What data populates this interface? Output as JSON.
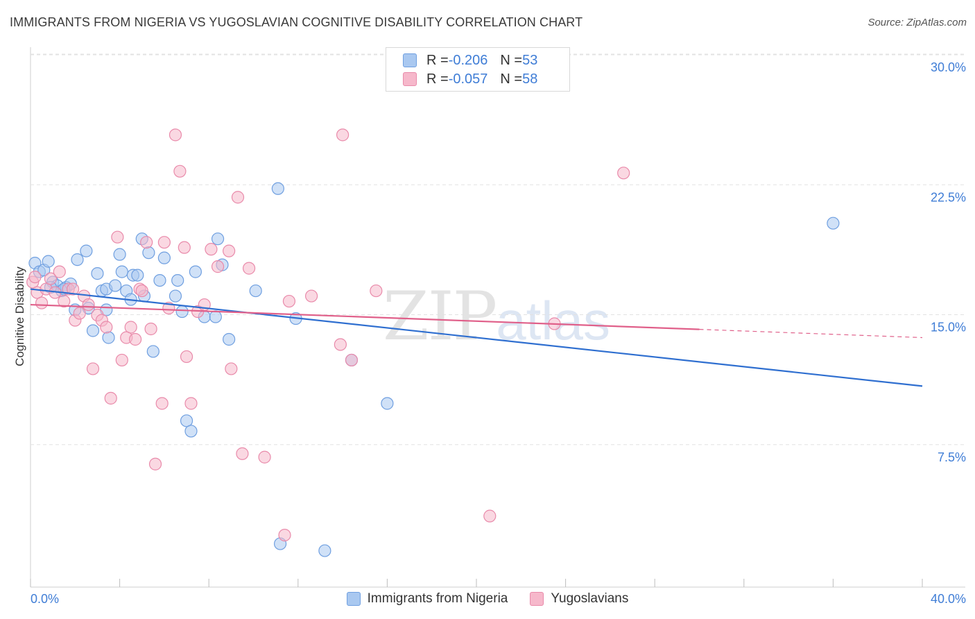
{
  "header": {
    "title": "IMMIGRANTS FROM NIGERIA VS YUGOSLAVIAN COGNITIVE DISABILITY CORRELATION CHART",
    "source": "Source: ZipAtlas.com"
  },
  "watermark": {
    "zip": "ZIP",
    "atlas": "atlas"
  },
  "legend": {
    "rows": [
      {
        "r_label": "R = ",
        "r_value": "-0.206",
        "n_label": "N = ",
        "n_value": "53",
        "color": "#a9c8f0"
      },
      {
        "r_label": "R = ",
        "r_value": "-0.057",
        "n_label": "N = ",
        "n_value": "58",
        "color": "#f6b8cb"
      }
    ]
  },
  "colors": {
    "blue_fill": "#a9c8f0",
    "blue_stroke": "#6f9fe0",
    "blue_line": "#2f6fd0",
    "pink_fill": "#f6b8cb",
    "pink_stroke": "#e98aaa",
    "pink_line": "#e0608a",
    "tick_label": "#3f7dd6"
  },
  "chart_data": {
    "type": "scatter",
    "title": "IMMIGRANTS FROM NIGERIA VS YUGOSLAVIAN COGNITIVE DISABILITY CORRELATION CHART",
    "xlabel": "",
    "ylabel": "Cognitive Disability",
    "xlim": [
      0,
      40
    ],
    "ylim": [
      0,
      31.5
    ],
    "x_tick_labels": [
      "0.0%",
      "40.0%"
    ],
    "y_ticks": [
      7.5,
      15.0,
      22.5,
      30.0
    ],
    "y_tick_labels": [
      "7.5%",
      "15.0%",
      "22.5%",
      "30.0%"
    ],
    "grid": "horizontal dashed",
    "legend_position": "top-center",
    "series": [
      {
        "name": "Immigrants from Nigeria",
        "color": "#a9c8f0",
        "trend": {
          "x": [
            0.0,
            40.0
          ],
          "y": [
            17.2,
            11.6
          ],
          "dashed_from": null
        },
        "points": [
          [
            0.2,
            18.7
          ],
          [
            0.4,
            18.2
          ],
          [
            0.6,
            18.3
          ],
          [
            0.8,
            18.8
          ],
          [
            1.0,
            17.6
          ],
          [
            1.2,
            17.4
          ],
          [
            1.4,
            17.1
          ],
          [
            1.6,
            17.3
          ],
          [
            1.8,
            17.5
          ],
          [
            2.1,
            18.9
          ],
          [
            2.5,
            19.4
          ],
          [
            2.6,
            16.1
          ],
          [
            2.8,
            14.8
          ],
          [
            3.0,
            18.1
          ],
          [
            3.2,
            17.1
          ],
          [
            3.4,
            17.2
          ],
          [
            3.5,
            14.4
          ],
          [
            3.8,
            17.4
          ],
          [
            4.0,
            19.2
          ],
          [
            4.1,
            18.2
          ],
          [
            4.3,
            17.1
          ],
          [
            4.5,
            16.6
          ],
          [
            4.6,
            18.0
          ],
          [
            4.8,
            18.0
          ],
          [
            5.0,
            20.1
          ],
          [
            5.1,
            16.8
          ],
          [
            5.3,
            19.3
          ],
          [
            5.5,
            13.6
          ],
          [
            5.8,
            17.7
          ],
          [
            6.0,
            19.0
          ],
          [
            6.5,
            16.8
          ],
          [
            6.6,
            17.7
          ],
          [
            6.8,
            15.9
          ],
          [
            7.0,
            9.6
          ],
          [
            7.2,
            9.0
          ],
          [
            7.4,
            18.2
          ],
          [
            7.8,
            15.6
          ],
          [
            8.3,
            15.6
          ],
          [
            8.4,
            20.1
          ],
          [
            8.6,
            18.6
          ],
          [
            8.9,
            14.3
          ],
          [
            10.1,
            17.1
          ],
          [
            11.1,
            23.0
          ],
          [
            11.2,
            2.5
          ],
          [
            11.9,
            15.5
          ],
          [
            13.2,
            2.1
          ],
          [
            14.4,
            13.1
          ],
          [
            16.0,
            10.6
          ],
          [
            36.0,
            21.0
          ],
          [
            3.4,
            16.0
          ],
          [
            2.0,
            16.0
          ],
          [
            1.5,
            17.2
          ],
          [
            0.9,
            17.3
          ]
        ]
      },
      {
        "name": "Yugoslavians",
        "color": "#f6b8cb",
        "trend": {
          "x": [
            0.0,
            40.0
          ],
          "y": [
            16.3,
            14.4
          ],
          "dashed_from": 30.0
        },
        "points": [
          [
            0.1,
            17.6
          ],
          [
            0.3,
            17.0
          ],
          [
            0.5,
            16.4
          ],
          [
            0.7,
            17.2
          ],
          [
            0.9,
            17.8
          ],
          [
            1.1,
            17.0
          ],
          [
            1.3,
            18.2
          ],
          [
            1.5,
            16.5
          ],
          [
            1.7,
            17.2
          ],
          [
            2.0,
            15.4
          ],
          [
            2.2,
            15.8
          ],
          [
            2.4,
            16.8
          ],
          [
            2.6,
            16.3
          ],
          [
            2.8,
            12.6
          ],
          [
            3.0,
            15.7
          ],
          [
            3.2,
            15.4
          ],
          [
            3.4,
            15.0
          ],
          [
            3.6,
            10.9
          ],
          [
            3.9,
            20.2
          ],
          [
            4.1,
            13.1
          ],
          [
            4.3,
            14.4
          ],
          [
            4.5,
            15.0
          ],
          [
            4.7,
            14.3
          ],
          [
            4.9,
            17.2
          ],
          [
            5.0,
            17.1
          ],
          [
            5.2,
            19.9
          ],
          [
            5.4,
            14.9
          ],
          [
            5.6,
            7.1
          ],
          [
            5.9,
            10.6
          ],
          [
            6.0,
            19.9
          ],
          [
            6.2,
            16.1
          ],
          [
            6.5,
            26.1
          ],
          [
            6.7,
            24.0
          ],
          [
            6.9,
            19.6
          ],
          [
            7.0,
            13.3
          ],
          [
            7.2,
            10.6
          ],
          [
            7.5,
            15.9
          ],
          [
            7.8,
            16.3
          ],
          [
            8.1,
            19.5
          ],
          [
            8.4,
            18.5
          ],
          [
            8.9,
            19.4
          ],
          [
            9.0,
            12.6
          ],
          [
            9.3,
            22.5
          ],
          [
            9.5,
            7.7
          ],
          [
            9.8,
            18.4
          ],
          [
            10.5,
            7.5
          ],
          [
            11.4,
            3.0
          ],
          [
            11.6,
            16.5
          ],
          [
            12.6,
            16.8
          ],
          [
            13.9,
            14.0
          ],
          [
            14.0,
            26.1
          ],
          [
            14.4,
            13.1
          ],
          [
            15.5,
            17.1
          ],
          [
            20.6,
            4.1
          ],
          [
            23.5,
            15.2
          ],
          [
            26.6,
            23.9
          ],
          [
            0.2,
            17.9
          ],
          [
            1.9,
            17.2
          ]
        ]
      }
    ]
  },
  "bottom_legend": {
    "items": [
      {
        "label": "Immigrants from Nigeria",
        "color": "#a9c8f0"
      },
      {
        "label": "Yugoslavians",
        "color": "#f6b8cb"
      }
    ]
  }
}
